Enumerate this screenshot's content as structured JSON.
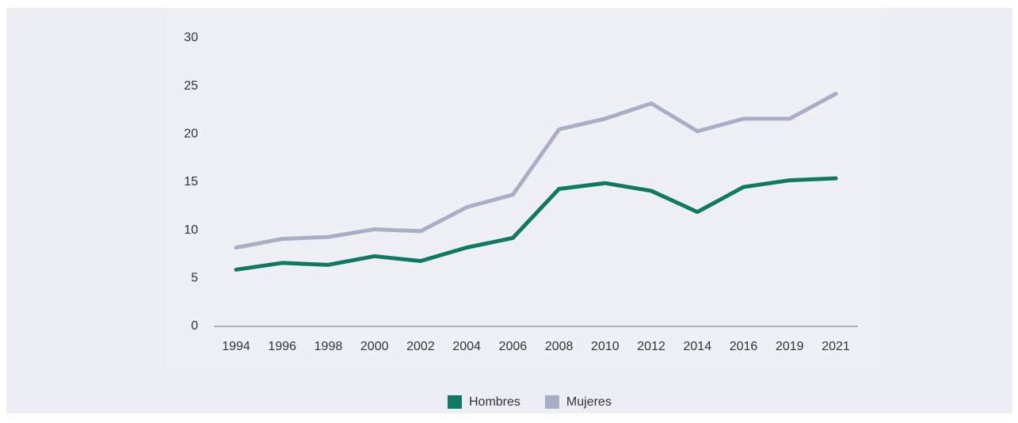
{
  "chart_data": {
    "type": "line",
    "categories": [
      "1994",
      "1996",
      "1998",
      "2000",
      "2002",
      "2004",
      "2006",
      "2008",
      "2010",
      "2012",
      "2014",
      "2016",
      "2019",
      "2021"
    ],
    "series": [
      {
        "name": "Hombres",
        "color": "#0f7a63",
        "values": [
          5.9,
          6.6,
          6.4,
          7.3,
          6.8,
          8.2,
          9.2,
          14.3,
          14.9,
          14.1,
          11.9,
          14.5,
          15.2,
          15.4
        ]
      },
      {
        "name": "Mujeres",
        "color": "#a9aec6",
        "values": [
          8.2,
          9.1,
          9.3,
          10.1,
          9.9,
          12.4,
          13.7,
          20.5,
          21.6,
          23.2,
          20.3,
          21.6,
          21.6,
          24.2
        ]
      }
    ],
    "ylim": [
      0,
      30
    ],
    "yticks": [
      0,
      5,
      10,
      15,
      20,
      25,
      30
    ],
    "grid": false,
    "legend": "bottom"
  }
}
